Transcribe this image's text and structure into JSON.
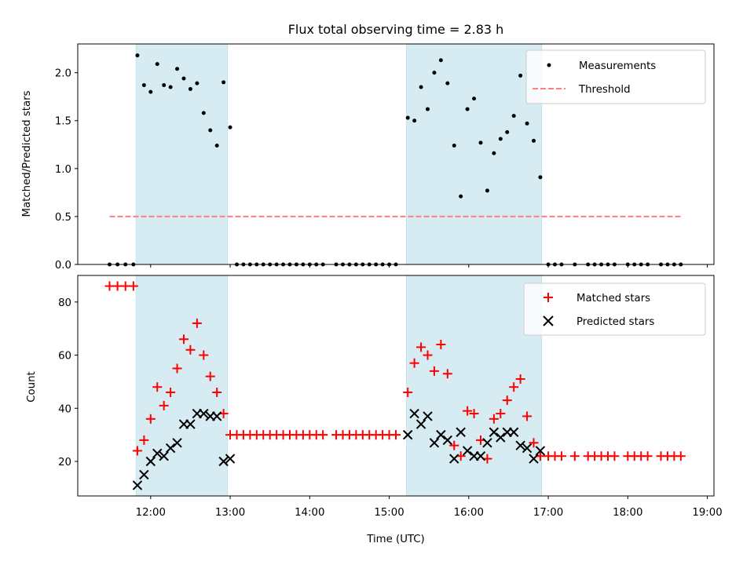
{
  "chart_data": [
    {
      "type": "scatter",
      "title": "Flux total observing time = 2.83 h",
      "xlabel": "",
      "ylabel": "Matched/Predicted stars",
      "ylim": [
        0,
        2.3
      ],
      "yticks": [
        "0.0",
        "0.5",
        "1.0",
        "1.5",
        "2.0"
      ],
      "legend": {
        "position": "top-right",
        "entries": [
          "Measurements",
          "Threshold"
        ]
      },
      "shaded_intervals": [
        [
          "11:49",
          "12:58"
        ],
        [
          "15:13",
          "16:55"
        ]
      ],
      "shade_color": "#add8e6",
      "series": [
        {
          "name": "Measurements",
          "marker": "dot",
          "color": "#000000",
          "points": [
            [
              "11:29",
              0
            ],
            [
              "11:35",
              0
            ],
            [
              "11:41",
              0
            ],
            [
              "11:47",
              0
            ],
            [
              "11:50",
              2.18
            ],
            [
              "11:55",
              1.87
            ],
            [
              "12:00",
              1.8
            ],
            [
              "12:05",
              2.09
            ],
            [
              "12:10",
              1.87
            ],
            [
              "12:15",
              1.85
            ],
            [
              "12:20",
              2.04
            ],
            [
              "12:25",
              1.94
            ],
            [
              "12:30",
              1.83
            ],
            [
              "12:35",
              1.89
            ],
            [
              "12:40",
              1.58
            ],
            [
              "12:45",
              1.4
            ],
            [
              "12:50",
              1.24
            ],
            [
              "12:55",
              1.9
            ],
            [
              "13:00",
              1.43
            ],
            [
              "13:05",
              0
            ],
            [
              "13:10",
              0
            ],
            [
              "13:15",
              0
            ],
            [
              "13:20",
              0
            ],
            [
              "13:25",
              0
            ],
            [
              "13:30",
              0
            ],
            [
              "13:35",
              0
            ],
            [
              "13:40",
              0
            ],
            [
              "13:45",
              0
            ],
            [
              "13:50",
              0
            ],
            [
              "13:55",
              0
            ],
            [
              "14:00",
              0
            ],
            [
              "14:05",
              0
            ],
            [
              "14:10",
              0
            ],
            [
              "14:20",
              0
            ],
            [
              "14:25",
              0
            ],
            [
              "14:30",
              0
            ],
            [
              "14:35",
              0
            ],
            [
              "14:40",
              0
            ],
            [
              "14:45",
              0
            ],
            [
              "14:50",
              0
            ],
            [
              "14:55",
              0
            ],
            [
              "15:00",
              0
            ],
            [
              "15:05",
              0
            ],
            [
              "15:14",
              1.53
            ],
            [
              "15:19",
              1.5
            ],
            [
              "15:24",
              1.85
            ],
            [
              "15:29",
              1.62
            ],
            [
              "15:34",
              2.0
            ],
            [
              "15:39",
              2.13
            ],
            [
              "15:44",
              1.89
            ],
            [
              "15:49",
              1.24
            ],
            [
              "15:54",
              0.71
            ],
            [
              "15:59",
              1.62
            ],
            [
              "16:04",
              1.73
            ],
            [
              "16:09",
              1.27
            ],
            [
              "16:14",
              0.77
            ],
            [
              "16:19",
              1.16
            ],
            [
              "16:24",
              1.31
            ],
            [
              "16:29",
              1.38
            ],
            [
              "16:34",
              1.55
            ],
            [
              "16:39",
              1.97
            ],
            [
              "16:44",
              1.47
            ],
            [
              "16:49",
              1.29
            ],
            [
              "16:54",
              0.91
            ],
            [
              "17:00",
              0
            ],
            [
              "17:05",
              0
            ],
            [
              "17:10",
              0
            ],
            [
              "17:20",
              0
            ],
            [
              "17:30",
              0
            ],
            [
              "17:35",
              0
            ],
            [
              "17:40",
              0
            ],
            [
              "17:45",
              0
            ],
            [
              "17:50",
              0
            ],
            [
              "18:00",
              0
            ],
            [
              "18:05",
              0
            ],
            [
              "18:10",
              0
            ],
            [
              "18:15",
              0
            ],
            [
              "18:25",
              0
            ],
            [
              "18:30",
              0
            ],
            [
              "18:35",
              0
            ],
            [
              "18:40",
              0
            ]
          ]
        },
        {
          "name": "Threshold",
          "style": "dashed",
          "color": "#ff7f7f",
          "points": [
            [
              "11:29",
              0.5
            ],
            [
              "18:40",
              0.5
            ]
          ]
        }
      ]
    },
    {
      "type": "scatter",
      "title": "",
      "xlabel": "Time (UTC)",
      "ylabel": "Count",
      "ylim": [
        7,
        90
      ],
      "yticks": [
        "20",
        "40",
        "60",
        "80"
      ],
      "xticks": [
        "12:00",
        "13:00",
        "14:00",
        "15:00",
        "16:00",
        "17:00",
        "18:00",
        "19:00"
      ],
      "xlim": [
        "11:05",
        "19:05"
      ],
      "legend": {
        "position": "top-right",
        "entries": [
          "Matched stars",
          "Predicted stars"
        ]
      },
      "shaded_intervals": [
        [
          "11:49",
          "12:58"
        ],
        [
          "15:13",
          "16:55"
        ]
      ],
      "series": [
        {
          "name": "Matched stars",
          "marker": "plus",
          "color": "#ff0000",
          "points": [
            [
              "11:29",
              86
            ],
            [
              "11:35",
              86
            ],
            [
              "11:41",
              86
            ],
            [
              "11:47",
              86
            ],
            [
              "11:50",
              24
            ],
            [
              "11:55",
              28
            ],
            [
              "12:00",
              36
            ],
            [
              "12:05",
              48
            ],
            [
              "12:10",
              41
            ],
            [
              "12:15",
              46
            ],
            [
              "12:20",
              55
            ],
            [
              "12:25",
              66
            ],
            [
              "12:30",
              62
            ],
            [
              "12:35",
              72
            ],
            [
              "12:40",
              60
            ],
            [
              "12:45",
              52
            ],
            [
              "12:50",
              46
            ],
            [
              "12:55",
              38
            ],
            [
              "13:00",
              30
            ],
            [
              "13:05",
              30
            ],
            [
              "13:10",
              30
            ],
            [
              "13:15",
              30
            ],
            [
              "13:20",
              30
            ],
            [
              "13:25",
              30
            ],
            [
              "13:30",
              30
            ],
            [
              "13:35",
              30
            ],
            [
              "13:40",
              30
            ],
            [
              "13:45",
              30
            ],
            [
              "13:50",
              30
            ],
            [
              "13:55",
              30
            ],
            [
              "14:00",
              30
            ],
            [
              "14:05",
              30
            ],
            [
              "14:10",
              30
            ],
            [
              "14:20",
              30
            ],
            [
              "14:25",
              30
            ],
            [
              "14:30",
              30
            ],
            [
              "14:35",
              30
            ],
            [
              "14:40",
              30
            ],
            [
              "14:45",
              30
            ],
            [
              "14:50",
              30
            ],
            [
              "14:55",
              30
            ],
            [
              "15:00",
              30
            ],
            [
              "15:05",
              30
            ],
            [
              "15:14",
              46
            ],
            [
              "15:19",
              57
            ],
            [
              "15:24",
              63
            ],
            [
              "15:29",
              60
            ],
            [
              "15:34",
              54
            ],
            [
              "15:39",
              64
            ],
            [
              "15:44",
              53
            ],
            [
              "15:49",
              26
            ],
            [
              "15:54",
              22
            ],
            [
              "15:59",
              39
            ],
            [
              "16:04",
              38
            ],
            [
              "16:09",
              28
            ],
            [
              "16:14",
              21
            ],
            [
              "16:19",
              36
            ],
            [
              "16:24",
              38
            ],
            [
              "16:29",
              43
            ],
            [
              "16:34",
              48
            ],
            [
              "16:39",
              51
            ],
            [
              "16:44",
              37
            ],
            [
              "16:49",
              27
            ],
            [
              "16:54",
              22
            ],
            [
              "17:00",
              22
            ],
            [
              "17:05",
              22
            ],
            [
              "17:10",
              22
            ],
            [
              "17:20",
              22
            ],
            [
              "17:30",
              22
            ],
            [
              "17:35",
              22
            ],
            [
              "17:40",
              22
            ],
            [
              "17:45",
              22
            ],
            [
              "17:50",
              22
            ],
            [
              "18:00",
              22
            ],
            [
              "18:05",
              22
            ],
            [
              "18:10",
              22
            ],
            [
              "18:15",
              22
            ],
            [
              "18:25",
              22
            ],
            [
              "18:30",
              22
            ],
            [
              "18:35",
              22
            ],
            [
              "18:40",
              22
            ]
          ]
        },
        {
          "name": "Predicted stars",
          "marker": "x",
          "color": "#000000",
          "points": [
            [
              "11:50",
              11
            ],
            [
              "11:55",
              15
            ],
            [
              "12:00",
              20
            ],
            [
              "12:05",
              23
            ],
            [
              "12:10",
              22
            ],
            [
              "12:15",
              25
            ],
            [
              "12:20",
              27
            ],
            [
              "12:25",
              34
            ],
            [
              "12:30",
              34
            ],
            [
              "12:35",
              38
            ],
            [
              "12:40",
              38
            ],
            [
              "12:45",
              37
            ],
            [
              "12:50",
              37
            ],
            [
              "12:55",
              20
            ],
            [
              "13:00",
              21
            ],
            [
              "15:14",
              30
            ],
            [
              "15:19",
              38
            ],
            [
              "15:24",
              34
            ],
            [
              "15:29",
              37
            ],
            [
              "15:34",
              27
            ],
            [
              "15:39",
              30
            ],
            [
              "15:44",
              28
            ],
            [
              "15:49",
              21
            ],
            [
              "15:54",
              31
            ],
            [
              "15:59",
              24
            ],
            [
              "16:04",
              22
            ],
            [
              "16:09",
              22
            ],
            [
              "16:14",
              27
            ],
            [
              "16:19",
              31
            ],
            [
              "16:24",
              29
            ],
            [
              "16:29",
              31
            ],
            [
              "16:34",
              31
            ],
            [
              "16:39",
              26
            ],
            [
              "16:44",
              25
            ],
            [
              "16:49",
              21
            ],
            [
              "16:54",
              24
            ]
          ]
        }
      ]
    }
  ]
}
